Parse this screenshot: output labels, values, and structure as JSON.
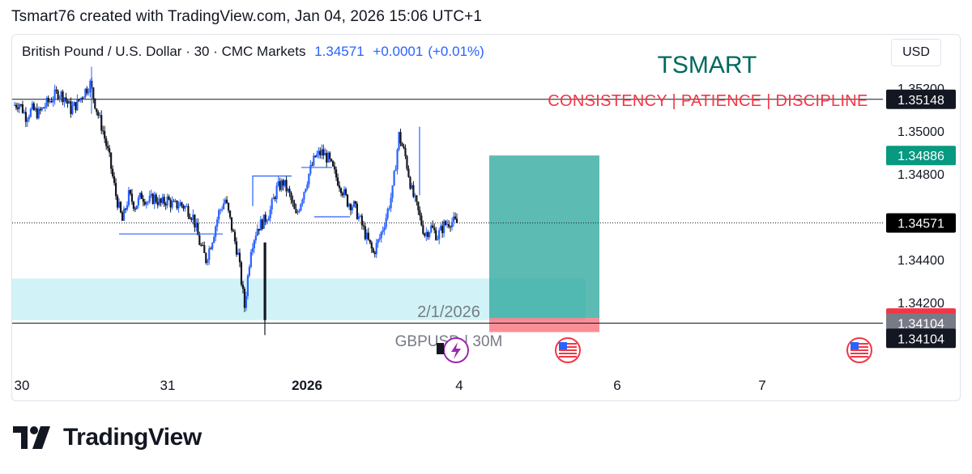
{
  "header": {
    "title": "Tsmart76 created with TradingView.com, Jan 04, 2026 15:06 UTC+1"
  },
  "legend": {
    "symbol": "British Pound / U.S. Dollar · 30 · CMC Markets",
    "last": "1.34571",
    "change": "+0.0001",
    "change_pct": "(+0.01%)"
  },
  "currency_button": "USD",
  "overlays": {
    "brand_title": "TSMART",
    "motto": "CONSISTENCY | PATIENCE  | DISCIPLINE",
    "date_note": "2/1/2026",
    "pair_note": "GBPUSD | 30M"
  },
  "colors": {
    "up": "#2962ff",
    "down": "#131722",
    "profit_zone": "#26a69a",
    "loss_zone": "#f7525f",
    "demand_zone": "#b2ebf2",
    "motto": "#f23645",
    "brand_title": "#00695c"
  },
  "chart_data": {
    "type": "candlestick",
    "symbol": "GBPUSD",
    "timeframe": "30",
    "y_range": [
      1.34,
      1.354
    ],
    "y_ticks": [
      "1.35200",
      "1.35000",
      "1.34800",
      "1.34400",
      "1.34200"
    ],
    "x_ticks": [
      "30",
      "31",
      "2026",
      "4",
      "6",
      "7"
    ],
    "horizontal_lines": [
      {
        "price": 1.35148,
        "style": "solid"
      },
      {
        "price": 1.34571,
        "style": "dotted"
      },
      {
        "price": 1.34104,
        "style": "solid"
      }
    ],
    "price_labels": [
      {
        "text": "1.35148",
        "price": 1.35148,
        "bg": "#131722"
      },
      {
        "text": "1.34886",
        "price": 1.34886,
        "bg": "#089981"
      },
      {
        "text": "1.34571",
        "price": 1.34571,
        "bg": "#000000"
      },
      {
        "text": "1.34128",
        "price": 1.34128,
        "bg": "#f23645"
      },
      {
        "text": "1.34104",
        "price": 1.34104,
        "bg": "#787b86"
      },
      {
        "text": "1.34104",
        "price": 1.34033,
        "bg": "#131722"
      }
    ],
    "long_position": {
      "entry": 1.34128,
      "take_profit": 1.34886,
      "stop_loss": 1.34062
    },
    "demand_zone": {
      "top": 1.34312,
      "bottom": 1.34118
    },
    "path_points": [
      [
        1.3512,
        1.3513
      ],
      [
        1.3513,
        1.3507
      ],
      [
        1.3507,
        1.351
      ],
      [
        1.351,
        1.3508
      ],
      [
        1.3508,
        1.3512
      ],
      [
        1.3512,
        1.3515
      ],
      [
        1.3515,
        1.3518
      ],
      [
        1.3518,
        1.3516
      ],
      [
        1.3516,
        1.351
      ],
      [
        1.351,
        1.3513
      ],
      [
        1.3513,
        1.3518
      ],
      [
        1.3518,
        1.3522
      ],
      [
        1.3522,
        1.351
      ],
      [
        1.351,
        1.35
      ],
      [
        1.35,
        1.3487
      ],
      [
        1.3487,
        1.347
      ],
      [
        1.347,
        1.3458
      ],
      [
        1.3458,
        1.347
      ],
      [
        1.347,
        1.3465
      ],
      [
        1.3465,
        1.347
      ],
      [
        1.347,
        1.3467
      ],
      [
        1.3467,
        1.3469
      ],
      [
        1.3469,
        1.3466
      ],
      [
        1.3466,
        1.3468
      ],
      [
        1.3468,
        1.3465
      ],
      [
        1.3465,
        1.3466
      ],
      [
        1.3466,
        1.3464
      ],
      [
        1.3464,
        1.346
      ],
      [
        1.346,
        1.3448
      ],
      [
        1.3448,
        1.344
      ],
      [
        1.344,
        1.345
      ],
      [
        1.345,
        1.3462
      ],
      [
        1.3462,
        1.3468
      ],
      [
        1.3468,
        1.3455
      ],
      [
        1.3455,
        1.3442
      ],
      [
        1.3442,
        1.3418
      ],
      [
        1.3418,
        1.3446
      ],
      [
        1.3446,
        1.3455
      ],
      [
        1.3455,
        1.3458
      ],
      [
        1.3458,
        1.3463
      ],
      [
        1.3463,
        1.3473
      ],
      [
        1.3473,
        1.3476
      ],
      [
        1.3476,
        1.347
      ],
      [
        1.347,
        1.346
      ],
      [
        1.346,
        1.347
      ],
      [
        1.347,
        1.348
      ],
      [
        1.348,
        1.3488
      ],
      [
        1.3488,
        1.349
      ],
      [
        1.349,
        1.3487
      ],
      [
        1.3487,
        1.348
      ],
      [
        1.348,
        1.3474
      ],
      [
        1.3474,
        1.3467
      ],
      [
        1.3467,
        1.3465
      ],
      [
        1.3465,
        1.3458
      ],
      [
        1.3458,
        1.345
      ],
      [
        1.345,
        1.3443
      ],
      [
        1.3443,
        1.345
      ],
      [
        1.345,
        1.346
      ],
      [
        1.346,
        1.3472
      ],
      [
        1.3472,
        1.3498
      ],
      [
        1.3498,
        1.3488
      ],
      [
        1.3488,
        1.3472
      ],
      [
        1.3472,
        1.3462
      ],
      [
        1.3462,
        1.3452
      ],
      [
        1.3452,
        1.3455
      ],
      [
        1.3455,
        1.3451
      ],
      [
        1.3451,
        1.3456
      ],
      [
        1.3456,
        1.3458
      ],
      [
        1.3458,
        1.3457
      ]
    ]
  }
}
